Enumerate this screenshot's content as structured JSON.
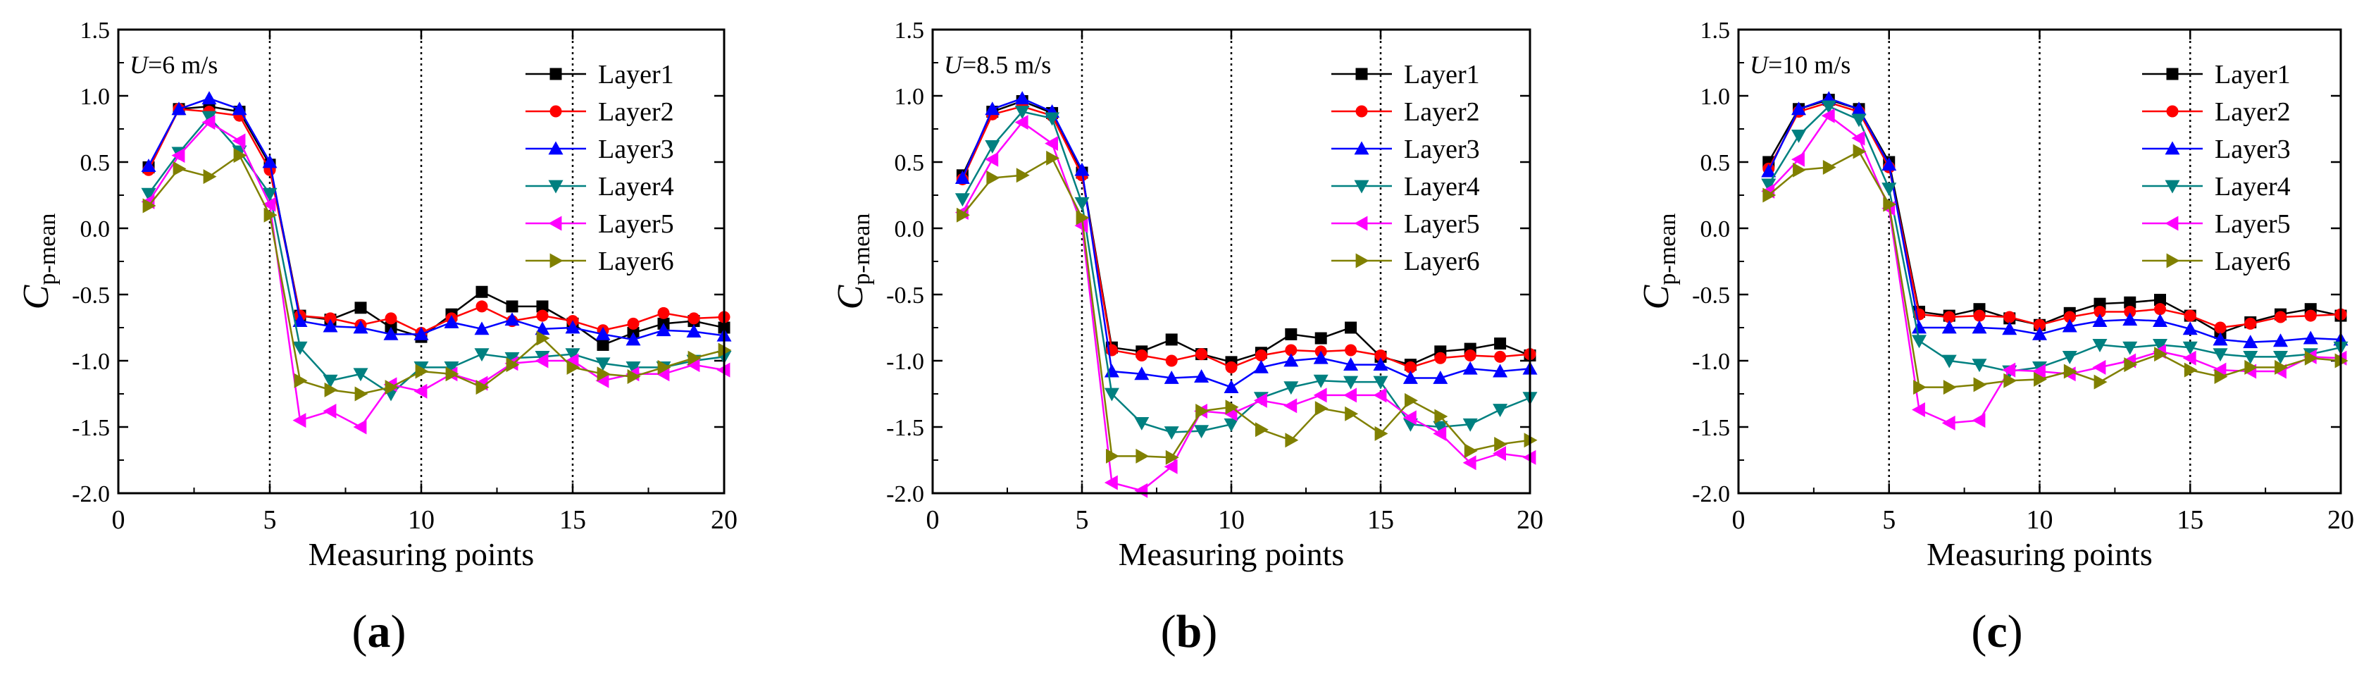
{
  "panels": [
    {
      "label_open": "(",
      "label_letter": "a",
      "label_close": ")",
      "chart_data": {
        "type": "line",
        "annotation_var": "U",
        "annotation_value": "=6 m/s",
        "xlabel": "Measuring points",
        "ylabel_main": "C",
        "ylabel_sub": "p-mean",
        "xlim": [
          0,
          20
        ],
        "ylim": [
          -2.0,
          1.5
        ],
        "xticks": [
          0,
          5,
          10,
          15,
          20
        ],
        "xtick_labels": [
          "0",
          "5",
          "10",
          "15",
          "20"
        ],
        "yticks": [
          -2.0,
          -1.5,
          -1.0,
          -0.5,
          0.0,
          0.5,
          1.0,
          1.5
        ],
        "ytick_labels": [
          "-2.0",
          "-1.5",
          "-1.0",
          "-0.5",
          "0.0",
          "0.5",
          "1.0",
          "1.5"
        ],
        "vlines": [
          5,
          10,
          15
        ],
        "legend_position": "top-right",
        "x": [
          1,
          2,
          3,
          4,
          5,
          6,
          7,
          8,
          9,
          10,
          11,
          12,
          13,
          14,
          15,
          16,
          17,
          18,
          19,
          20
        ],
        "series": [
          {
            "name": "Layer1",
            "values": [
              0.46,
              0.9,
              0.92,
              0.88,
              0.48,
              -0.66,
              -0.69,
              -0.6,
              -0.75,
              -0.82,
              -0.65,
              -0.48,
              -0.59,
              -0.59,
              -0.72,
              -0.88,
              -0.79,
              -0.72,
              -0.7,
              -0.75
            ]
          },
          {
            "name": "Layer2",
            "values": [
              0.44,
              0.9,
              0.88,
              0.85,
              0.44,
              -0.66,
              -0.68,
              -0.73,
              -0.68,
              -0.79,
              -0.68,
              -0.59,
              -0.7,
              -0.66,
              -0.7,
              -0.77,
              -0.72,
              -0.64,
              -0.68,
              -0.67
            ]
          },
          {
            "name": "Layer3",
            "values": [
              0.47,
              0.9,
              0.98,
              0.9,
              0.5,
              -0.7,
              -0.74,
              -0.75,
              -0.8,
              -0.8,
              -0.71,
              -0.76,
              -0.69,
              -0.76,
              -0.75,
              -0.8,
              -0.84,
              -0.77,
              -0.78,
              -0.81
            ]
          },
          {
            "name": "Layer4",
            "values": [
              0.26,
              0.57,
              0.84,
              0.58,
              0.26,
              -0.9,
              -1.15,
              -1.1,
              -1.25,
              -1.05,
              -1.05,
              -0.95,
              -0.98,
              -0.97,
              -0.95,
              -1.02,
              -1.05,
              -1.05,
              -1.0,
              -0.97
            ]
          },
          {
            "name": "Layer5",
            "values": [
              0.2,
              0.55,
              0.8,
              0.66,
              0.18,
              -1.45,
              -1.38,
              -1.5,
              -1.18,
              -1.23,
              -1.1,
              -1.17,
              -1.02,
              -1.0,
              -1.0,
              -1.15,
              -1.1,
              -1.1,
              -1.03,
              -1.07
            ]
          },
          {
            "name": "Layer6",
            "values": [
              0.17,
              0.45,
              0.39,
              0.55,
              0.1,
              -1.15,
              -1.22,
              -1.25,
              -1.2,
              -1.08,
              -1.1,
              -1.2,
              -1.03,
              -0.83,
              -1.05,
              -1.1,
              -1.12,
              -1.05,
              -0.98,
              -0.92
            ]
          }
        ]
      }
    },
    {
      "label_open": "(",
      "label_letter": "b",
      "label_close": ")",
      "chart_data": {
        "type": "line",
        "annotation_var": "U",
        "annotation_value": "=8.5 m/s",
        "xlabel": "Measuring points",
        "ylabel_main": "C",
        "ylabel_sub": "p-mean",
        "xlim": [
          0,
          20
        ],
        "ylim": [
          -2.0,
          1.5
        ],
        "xticks": [
          0,
          5,
          10,
          15,
          20
        ],
        "xtick_labels": [
          "0",
          "5",
          "10",
          "15",
          "20"
        ],
        "yticks": [
          -2.0,
          -1.5,
          -1.0,
          -0.5,
          0.0,
          0.5,
          1.0,
          1.5
        ],
        "ytick_labels": [
          "-2.0",
          "-1.5",
          "-1.0",
          "-0.5",
          "0.0",
          "0.5",
          "1.0",
          "1.5"
        ],
        "vlines": [
          5,
          10,
          15
        ],
        "legend_position": "top-right",
        "x": [
          1,
          2,
          3,
          4,
          5,
          6,
          7,
          8,
          9,
          10,
          11,
          12,
          13,
          14,
          15,
          16,
          17,
          18,
          19,
          20
        ],
        "series": [
          {
            "name": "Layer1",
            "values": [
              0.4,
              0.88,
              0.96,
              0.87,
              0.42,
              -0.9,
              -0.93,
              -0.84,
              -0.95,
              -1.01,
              -0.94,
              -0.8,
              -0.83,
              -0.75,
              -0.97,
              -1.03,
              -0.93,
              -0.91,
              -0.87,
              -0.96
            ]
          },
          {
            "name": "Layer2",
            "values": [
              0.37,
              0.86,
              0.92,
              0.85,
              0.4,
              -0.92,
              -0.96,
              -1.0,
              -0.95,
              -1.05,
              -0.96,
              -0.92,
              -0.93,
              -0.92,
              -0.96,
              -1.05,
              -0.98,
              -0.96,
              -0.97,
              -0.95
            ]
          },
          {
            "name": "Layer3",
            "values": [
              0.38,
              0.9,
              0.98,
              0.88,
              0.44,
              -1.08,
              -1.1,
              -1.13,
              -1.12,
              -1.2,
              -1.05,
              -1.0,
              -0.98,
              -1.03,
              -1.03,
              -1.13,
              -1.13,
              -1.06,
              -1.08,
              -1.06
            ]
          },
          {
            "name": "Layer4",
            "values": [
              0.22,
              0.62,
              0.88,
              0.83,
              0.19,
              -1.25,
              -1.47,
              -1.54,
              -1.53,
              -1.48,
              -1.28,
              -1.2,
              -1.15,
              -1.16,
              -1.16,
              -1.48,
              -1.5,
              -1.48,
              -1.37,
              -1.28
            ]
          },
          {
            "name": "Layer5",
            "values": [
              0.12,
              0.52,
              0.8,
              0.64,
              0.02,
              -1.92,
              -1.98,
              -1.8,
              -1.38,
              -1.4,
              -1.3,
              -1.34,
              -1.26,
              -1.26,
              -1.26,
              -1.43,
              -1.55,
              -1.77,
              -1.7,
              -1.73
            ]
          },
          {
            "name": "Layer6",
            "values": [
              0.1,
              0.38,
              0.4,
              0.53,
              0.08,
              -1.72,
              -1.72,
              -1.73,
              -1.38,
              -1.35,
              -1.52,
              -1.6,
              -1.36,
              -1.4,
              -1.55,
              -1.3,
              -1.42,
              -1.68,
              -1.63,
              -1.6
            ]
          }
        ]
      }
    },
    {
      "label_open": "(",
      "label_letter": "c",
      "label_close": ")",
      "chart_data": {
        "type": "line",
        "annotation_var": "U",
        "annotation_value": "=10 m/s",
        "xlabel": "Measuring points",
        "ylabel_main": "C",
        "ylabel_sub": "p-mean",
        "xlim": [
          0,
          20
        ],
        "ylim": [
          -2.0,
          1.5
        ],
        "xticks": [
          0,
          5,
          10,
          15,
          20
        ],
        "xtick_labels": [
          "0",
          "5",
          "10",
          "15",
          "20"
        ],
        "yticks": [
          -2.0,
          -1.5,
          -1.0,
          -0.5,
          0.0,
          0.5,
          1.0,
          1.5
        ],
        "ytick_labels": [
          "-2.0",
          "-1.5",
          "-1.0",
          "-0.5",
          "0.0",
          "0.5",
          "1.0",
          "1.5"
        ],
        "vlines": [
          5,
          10,
          15
        ],
        "legend_position": "top-right",
        "x": [
          1,
          2,
          3,
          4,
          5,
          6,
          7,
          8,
          9,
          10,
          11,
          12,
          13,
          14,
          15,
          16,
          17,
          18,
          19,
          20
        ],
        "series": [
          {
            "name": "Layer1",
            "values": [
              0.5,
              0.9,
              0.97,
              0.9,
              0.5,
              -0.63,
              -0.66,
              -0.61,
              -0.68,
              -0.73,
              -0.64,
              -0.57,
              -0.56,
              -0.54,
              -0.66,
              -0.79,
              -0.71,
              -0.65,
              -0.61,
              -0.66
            ]
          },
          {
            "name": "Layer2",
            "values": [
              0.45,
              0.88,
              0.95,
              0.88,
              0.46,
              -0.65,
              -0.67,
              -0.66,
              -0.67,
              -0.73,
              -0.67,
              -0.63,
              -0.63,
              -0.61,
              -0.66,
              -0.75,
              -0.72,
              -0.67,
              -0.66,
              -0.65
            ]
          },
          {
            "name": "Layer3",
            "values": [
              0.43,
              0.9,
              0.98,
              0.9,
              0.48,
              -0.75,
              -0.75,
              -0.75,
              -0.76,
              -0.8,
              -0.74,
              -0.7,
              -0.69,
              -0.7,
              -0.76,
              -0.84,
              -0.86,
              -0.85,
              -0.83,
              -0.84
            ]
          },
          {
            "name": "Layer4",
            "values": [
              0.33,
              0.7,
              0.92,
              0.82,
              0.3,
              -0.85,
              -1.0,
              -1.03,
              -1.08,
              -1.05,
              -0.97,
              -0.88,
              -0.9,
              -0.88,
              -0.9,
              -0.95,
              -0.97,
              -0.97,
              -0.95,
              -0.9
            ]
          },
          {
            "name": "Layer5",
            "values": [
              0.28,
              0.52,
              0.85,
              0.68,
              0.15,
              -1.37,
              -1.47,
              -1.45,
              -1.07,
              -1.08,
              -1.1,
              -1.05,
              -1.0,
              -0.93,
              -0.98,
              -1.07,
              -1.08,
              -1.08,
              -0.97,
              -0.98
            ]
          },
          {
            "name": "Layer6",
            "values": [
              0.25,
              0.44,
              0.46,
              0.58,
              0.18,
              -1.2,
              -1.2,
              -1.18,
              -1.15,
              -1.14,
              -1.08,
              -1.16,
              -1.03,
              -0.95,
              -1.07,
              -1.12,
              -1.05,
              -1.05,
              -0.98,
              -1.0
            ]
          }
        ]
      }
    }
  ],
  "series_colors": [
    "#000000",
    "#ff0000",
    "#0000ff",
    "#008080",
    "#ff00ff",
    "#808000"
  ],
  "series_markers": [
    "square",
    "circle",
    "triangle-up",
    "triangle-down",
    "triangle-left",
    "triangle-right"
  ]
}
